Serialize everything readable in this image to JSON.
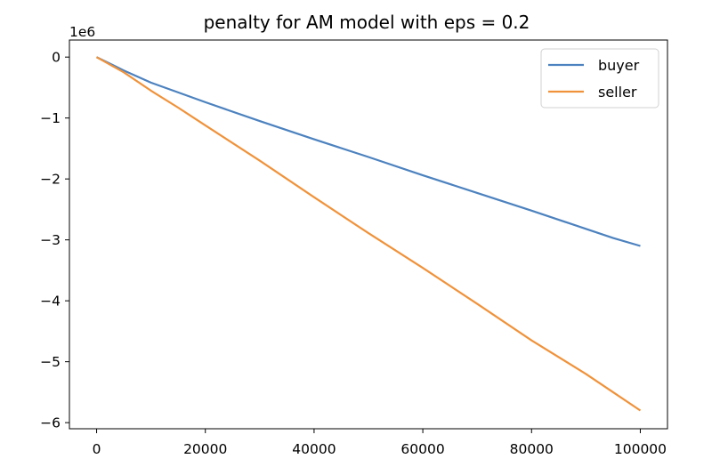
{
  "chart_data": {
    "type": "line",
    "title": "penalty for AM model with eps = 0.2",
    "xlabel": "",
    "ylabel": "",
    "y_offset_label": "1e6",
    "xlim": [
      -5000,
      105000
    ],
    "ylim": [
      -6.1,
      0.28
    ],
    "x_ticks": [
      0,
      20000,
      40000,
      60000,
      80000,
      100000
    ],
    "x_tick_labels": [
      "0",
      "20000",
      "40000",
      "60000",
      "80000",
      "100000"
    ],
    "y_ticks": [
      0,
      -1,
      -2,
      -3,
      -4,
      -5,
      -6
    ],
    "y_tick_labels": [
      "0",
      "−1",
      "−2",
      "−3",
      "−4",
      "−5",
      "−6"
    ],
    "grid": false,
    "legend_position": "upper right",
    "series": [
      {
        "name": "buyer",
        "color": "#4c82bf",
        "x": [
          0,
          5000,
          10000,
          15000,
          20000,
          30000,
          40000,
          50000,
          60000,
          70000,
          80000,
          90000,
          95000,
          100000
        ],
        "y": [
          0,
          -0.22,
          -0.42,
          -0.58,
          -0.74,
          -1.05,
          -1.35,
          -1.64,
          -1.94,
          -2.23,
          -2.52,
          -2.82,
          -2.97,
          -3.1
        ]
      },
      {
        "name": "seller",
        "color": "#f0923a",
        "x": [
          0,
          5000,
          10000,
          15000,
          20000,
          30000,
          40000,
          50000,
          60000,
          70000,
          80000,
          90000,
          95000,
          100000
        ],
        "y": [
          0,
          -0.25,
          -0.55,
          -0.83,
          -1.12,
          -1.7,
          -2.3,
          -2.89,
          -3.46,
          -4.05,
          -4.65,
          -5.2,
          -5.5,
          -5.8
        ]
      }
    ]
  }
}
